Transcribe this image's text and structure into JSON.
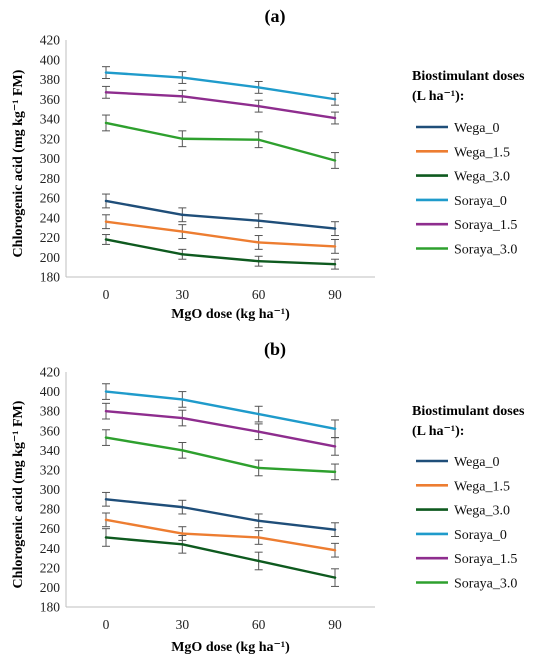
{
  "chart_data": [
    {
      "panel_label": "(a)",
      "type": "line",
      "xlabel": "MgO dose (kg ha⁻¹)",
      "ylabel": "Chlorogenic acid (mg kg⁻¹ FM)",
      "x": [
        0,
        30,
        60,
        90
      ],
      "xticks": [
        "0",
        "30",
        "60",
        "90"
      ],
      "ylim": [
        180,
        420
      ],
      "yticks": [
        180,
        200,
        220,
        240,
        260,
        280,
        300,
        320,
        340,
        360,
        380,
        400,
        420
      ],
      "grid": false,
      "legend_title": [
        "Biostimulant doses",
        "(L ha⁻¹):"
      ],
      "legend_position": "right",
      "series": [
        {
          "name": "Wega_0",
          "color": "#1f4e79",
          "values": [
            257,
            243,
            237,
            229
          ],
          "errors": [
            7,
            7,
            7,
            7
          ]
        },
        {
          "name": "Wega_1.5",
          "color": "#ed7d31",
          "values": [
            236,
            226,
            215,
            211
          ],
          "errors": [
            7,
            7,
            7,
            7
          ]
        },
        {
          "name": "Wega_3.0",
          "color": "#0e5a1f",
          "values": [
            218,
            203,
            196,
            193
          ],
          "errors": [
            5,
            5,
            5,
            5
          ]
        },
        {
          "name": "Soraya_0",
          "color": "#1f9bcb",
          "values": [
            387,
            382,
            372,
            360
          ],
          "errors": [
            6,
            6,
            6,
            6
          ]
        },
        {
          "name": "Soraya_1.5",
          "color": "#8e2d8e",
          "values": [
            367,
            363,
            353,
            341
          ],
          "errors": [
            6,
            6,
            6,
            6
          ]
        },
        {
          "name": "Soraya_3.0",
          "color": "#2ea02e",
          "values": [
            336,
            320,
            319,
            298
          ],
          "errors": [
            8,
            8,
            8,
            8
          ]
        }
      ]
    },
    {
      "panel_label": "(b)",
      "type": "line",
      "xlabel": "MgO dose (kg ha⁻¹)",
      "ylabel": "Chlorogenic acid (mg kg⁻¹ FM)",
      "x": [
        0,
        30,
        60,
        90
      ],
      "xticks": [
        "0",
        "30",
        "60",
        "90"
      ],
      "ylim": [
        180,
        420
      ],
      "yticks": [
        180,
        200,
        220,
        240,
        260,
        280,
        300,
        320,
        340,
        360,
        380,
        400,
        420
      ],
      "grid": false,
      "legend_title": [
        "Biostimulant doses",
        "(L ha⁻¹):"
      ],
      "legend_position": "right",
      "series": [
        {
          "name": "Wega_0",
          "color": "#1f4e79",
          "values": [
            290,
            282,
            268,
            259
          ],
          "errors": [
            7,
            7,
            7,
            7
          ]
        },
        {
          "name": "Wega_1.5",
          "color": "#ed7d31",
          "values": [
            269,
            255,
            251,
            238
          ],
          "errors": [
            7,
            7,
            7,
            7
          ]
        },
        {
          "name": "Wega_3.0",
          "color": "#0e5a1f",
          "values": [
            251,
            244,
            227,
            210
          ],
          "errors": [
            9,
            9,
            9,
            9
          ]
        },
        {
          "name": "Soraya_0",
          "color": "#1f9bcb",
          "values": [
            400,
            392,
            377,
            362
          ],
          "errors": [
            8,
            8,
            8,
            9
          ]
        },
        {
          "name": "Soraya_1.5",
          "color": "#8e2d8e",
          "values": [
            380,
            373,
            359,
            344
          ],
          "errors": [
            8,
            8,
            8,
            9
          ]
        },
        {
          "name": "Soraya_3.0",
          "color": "#2ea02e",
          "values": [
            353,
            340,
            322,
            318
          ],
          "errors": [
            8,
            8,
            8,
            8
          ]
        }
      ]
    }
  ]
}
